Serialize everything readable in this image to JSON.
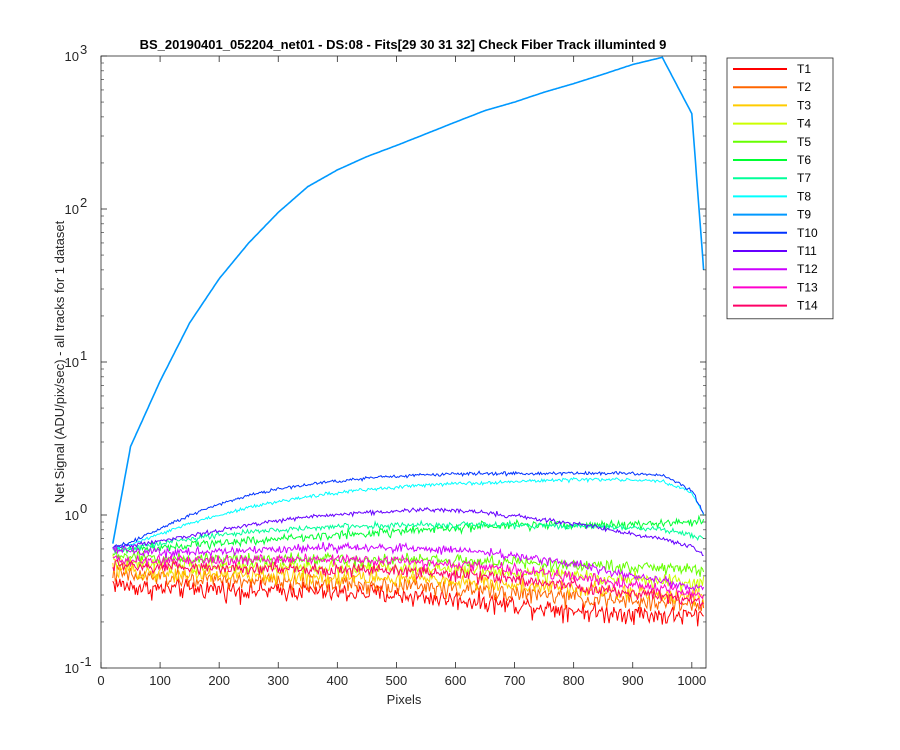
{
  "chart_data": {
    "type": "line",
    "title": "BS_20190401_052204_net01 - DS:08 - Fits[29  30  31  32]   Check Fiber     Track illuminted 9",
    "xlabel": "Pixels",
    "ylabel": "Net Signal (ADU/pix/sec) - all tracks for 1 dataset",
    "xlim": [
      0,
      1024
    ],
    "ylim": [
      0.1,
      1000
    ],
    "yscale": "log",
    "grid": false,
    "legend_position": "outside-right",
    "x_ticks": [
      0,
      100,
      200,
      300,
      400,
      500,
      600,
      700,
      800,
      900,
      1000
    ],
    "x_tick_labels": [
      "0",
      "100",
      "200",
      "300",
      "400",
      "500",
      "600",
      "700",
      "800",
      "900",
      "1000"
    ],
    "y_ticks": [
      0.1,
      1,
      10,
      100,
      1000
    ],
    "y_tick_labels": [
      {
        "base": "10",
        "exp": "-1"
      },
      {
        "base": "10",
        "exp": "0"
      },
      {
        "base": "10",
        "exp": "1"
      },
      {
        "base": "10",
        "exp": "2"
      },
      {
        "base": "10",
        "exp": "3"
      }
    ],
    "x": [
      20,
      50,
      100,
      150,
      200,
      250,
      300,
      350,
      400,
      450,
      500,
      550,
      600,
      650,
      700,
      750,
      800,
      850,
      900,
      950,
      1000,
      1020
    ],
    "series": [
      {
        "name": "T1",
        "color": "#ff0000",
        "noise": 0.22,
        "values": [
          0.36,
          0.34,
          0.33,
          0.33,
          0.33,
          0.32,
          0.32,
          0.32,
          0.31,
          0.31,
          0.3,
          0.29,
          0.28,
          0.27,
          0.26,
          0.25,
          0.24,
          0.23,
          0.23,
          0.22,
          0.22,
          0.22
        ]
      },
      {
        "name": "T2",
        "color": "#ff6600",
        "noise": 0.2,
        "values": [
          0.42,
          0.4,
          0.39,
          0.38,
          0.38,
          0.37,
          0.37,
          0.36,
          0.36,
          0.35,
          0.35,
          0.34,
          0.33,
          0.32,
          0.31,
          0.3,
          0.29,
          0.28,
          0.27,
          0.27,
          0.26,
          0.26
        ]
      },
      {
        "name": "T3",
        "color": "#ffcc00",
        "noise": 0.18,
        "values": [
          0.45,
          0.43,
          0.42,
          0.41,
          0.41,
          0.4,
          0.4,
          0.4,
          0.39,
          0.39,
          0.38,
          0.38,
          0.37,
          0.36,
          0.35,
          0.34,
          0.33,
          0.32,
          0.31,
          0.3,
          0.3,
          0.29
        ]
      },
      {
        "name": "T4",
        "color": "#ccff00",
        "noise": 0.16,
        "values": [
          0.5,
          0.48,
          0.47,
          0.47,
          0.46,
          0.46,
          0.46,
          0.46,
          0.45,
          0.45,
          0.45,
          0.44,
          0.44,
          0.43,
          0.42,
          0.41,
          0.4,
          0.39,
          0.38,
          0.37,
          0.36,
          0.36
        ]
      },
      {
        "name": "T5",
        "color": "#66ff00",
        "noise": 0.14,
        "values": [
          0.55,
          0.53,
          0.52,
          0.52,
          0.52,
          0.52,
          0.52,
          0.52,
          0.52,
          0.51,
          0.51,
          0.51,
          0.5,
          0.5,
          0.49,
          0.48,
          0.47,
          0.47,
          0.46,
          0.45,
          0.44,
          0.44
        ]
      },
      {
        "name": "T6",
        "color": "#00ff33",
        "noise": 0.1,
        "values": [
          0.6,
          0.6,
          0.62,
          0.64,
          0.66,
          0.68,
          0.7,
          0.72,
          0.74,
          0.76,
          0.78,
          0.8,
          0.82,
          0.84,
          0.85,
          0.86,
          0.86,
          0.86,
          0.87,
          0.88,
          0.9,
          0.92
        ]
      },
      {
        "name": "T7",
        "color": "#00ff99",
        "noise": 0.07,
        "values": [
          0.58,
          0.6,
          0.65,
          0.7,
          0.74,
          0.77,
          0.8,
          0.82,
          0.84,
          0.85,
          0.86,
          0.86,
          0.86,
          0.86,
          0.86,
          0.85,
          0.85,
          0.84,
          0.83,
          0.8,
          0.74,
          0.7
        ]
      },
      {
        "name": "T8",
        "color": "#00ffff",
        "noise": 0.04,
        "values": [
          0.6,
          0.64,
          0.75,
          0.88,
          1.0,
          1.12,
          1.22,
          1.32,
          1.4,
          1.47,
          1.52,
          1.57,
          1.6,
          1.63,
          1.66,
          1.68,
          1.7,
          1.7,
          1.7,
          1.66,
          1.4,
          1.0
        ]
      },
      {
        "name": "T9",
        "color": "#0099ff",
        "noise": 0.0,
        "values": [
          0.65,
          2.8,
          7.5,
          18,
          35,
          60,
          95,
          140,
          180,
          220,
          260,
          310,
          370,
          440,
          500,
          580,
          660,
          760,
          880,
          980,
          420,
          40
        ]
      },
      {
        "name": "T10",
        "color": "#0033ff",
        "noise": 0.04,
        "values": [
          0.62,
          0.66,
          0.82,
          1.0,
          1.18,
          1.35,
          1.48,
          1.58,
          1.67,
          1.74,
          1.79,
          1.83,
          1.86,
          1.87,
          1.87,
          1.87,
          1.88,
          1.88,
          1.87,
          1.82,
          1.45,
          1.02
        ]
      },
      {
        "name": "T11",
        "color": "#6600ff",
        "noise": 0.05,
        "values": [
          0.62,
          0.63,
          0.68,
          0.73,
          0.79,
          0.86,
          0.92,
          0.97,
          1.01,
          1.04,
          1.06,
          1.08,
          1.07,
          1.04,
          0.99,
          0.93,
          0.88,
          0.82,
          0.75,
          0.7,
          0.62,
          0.55
        ]
      },
      {
        "name": "T12",
        "color": "#cc00ff",
        "noise": 0.1,
        "values": [
          0.6,
          0.58,
          0.57,
          0.57,
          0.58,
          0.59,
          0.6,
          0.61,
          0.61,
          0.61,
          0.61,
          0.6,
          0.59,
          0.57,
          0.54,
          0.51,
          0.48,
          0.44,
          0.4,
          0.37,
          0.34,
          0.33
        ]
      },
      {
        "name": "T13",
        "color": "#ff00cc",
        "noise": 0.12,
        "values": [
          0.52,
          0.5,
          0.5,
          0.5,
          0.51,
          0.51,
          0.51,
          0.51,
          0.51,
          0.51,
          0.5,
          0.49,
          0.48,
          0.46,
          0.44,
          0.42,
          0.39,
          0.37,
          0.35,
          0.33,
          0.31,
          0.3
        ]
      },
      {
        "name": "T14",
        "color": "#ff0066",
        "noise": 0.14,
        "values": [
          0.48,
          0.46,
          0.45,
          0.45,
          0.45,
          0.45,
          0.45,
          0.44,
          0.44,
          0.44,
          0.43,
          0.42,
          0.41,
          0.4,
          0.38,
          0.36,
          0.34,
          0.32,
          0.31,
          0.29,
          0.28,
          0.27
        ]
      }
    ]
  }
}
